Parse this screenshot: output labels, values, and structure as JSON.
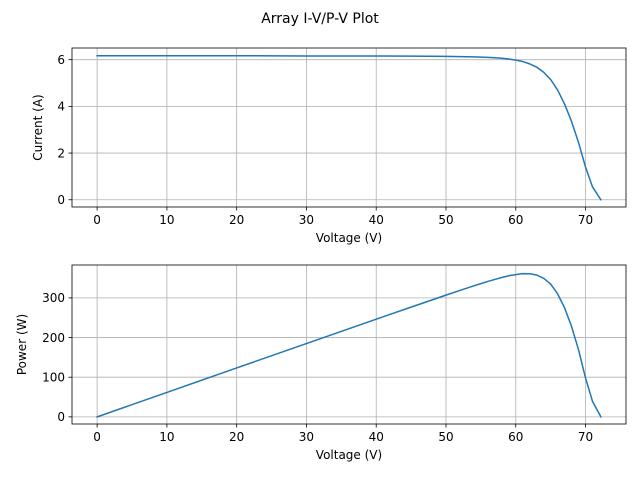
{
  "figure": {
    "title": "Array I-V/P-V Plot"
  },
  "chart_data": [
    {
      "type": "line",
      "xlabel": "Voltage (V)",
      "ylabel": "Current (A)",
      "xlim": [
        -3.6,
        75.8
      ],
      "ylim": [
        -0.31,
        6.5
      ],
      "xticks": [
        0,
        10,
        20,
        30,
        40,
        50,
        60,
        70
      ],
      "yticks": [
        0,
        2,
        4,
        6
      ],
      "grid": true,
      "color": "#1f77b4",
      "series": [
        {
          "x": [
            0,
            10,
            20,
            30,
            40,
            45,
            50,
            52,
            54,
            55,
            56,
            57,
            58,
            59,
            60,
            61,
            62,
            63,
            64,
            65,
            66,
            67,
            68,
            69,
            70,
            71,
            72.2
          ],
          "y": [
            6.17,
            6.17,
            6.17,
            6.16,
            6.16,
            6.15,
            6.14,
            6.13,
            6.12,
            6.11,
            6.1,
            6.08,
            6.06,
            6.03,
            5.98,
            5.92,
            5.82,
            5.68,
            5.46,
            5.15,
            4.7,
            4.1,
            3.35,
            2.45,
            1.4,
            0.55,
            0.0
          ]
        }
      ]
    },
    {
      "type": "line",
      "xlabel": "Voltage (V)",
      "ylabel": "Power (W)",
      "xlim": [
        -3.6,
        75.8
      ],
      "ylim": [
        -18,
        383
      ],
      "xticks": [
        0,
        10,
        20,
        30,
        40,
        50,
        60,
        70
      ],
      "yticks": [
        0,
        100,
        200,
        300
      ],
      "grid": true,
      "color": "#1f77b4",
      "series": [
        {
          "x": [
            0,
            10,
            20,
            30,
            40,
            45,
            50,
            52,
            54,
            55,
            56,
            57,
            58,
            59,
            60,
            61,
            62,
            63,
            64,
            65,
            66,
            67,
            68,
            69,
            70,
            71,
            72.2
          ],
          "y": [
            0,
            61.7,
            123.4,
            184.8,
            246.4,
            276.8,
            307.0,
            318.8,
            330.5,
            336.1,
            341.6,
            346.6,
            351.5,
            355.8,
            358.8,
            361.1,
            360.8,
            357.8,
            349.4,
            334.8,
            310.2,
            274.7,
            227.8,
            169.1,
            98.0,
            39.1,
            0
          ]
        }
      ]
    }
  ]
}
